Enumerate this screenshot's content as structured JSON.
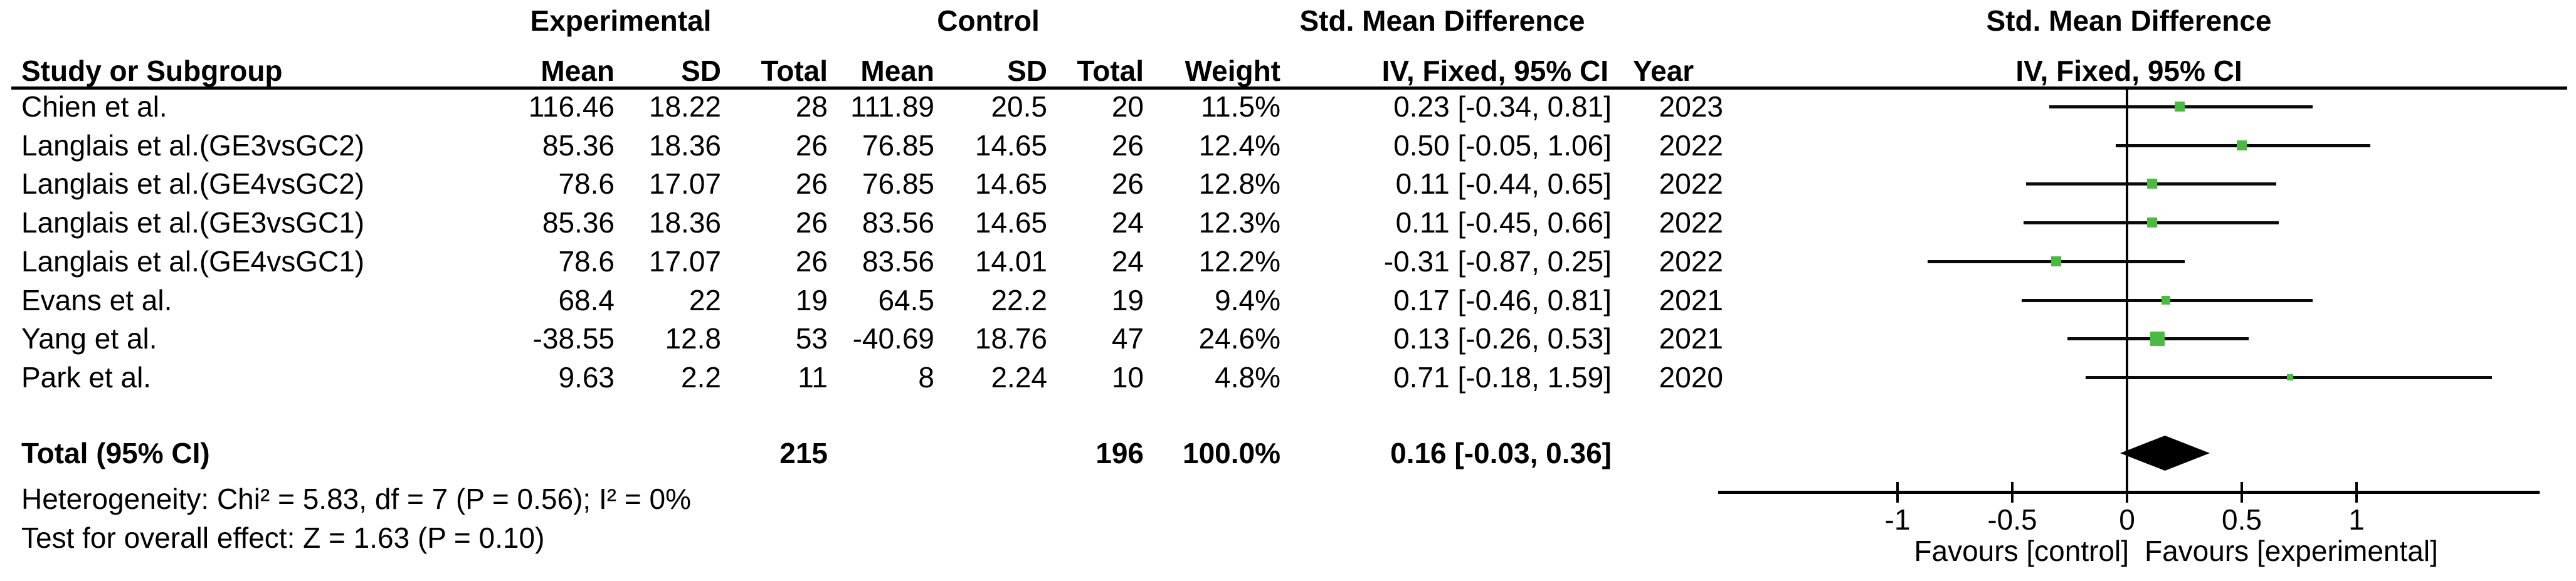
{
  "group_headers": {
    "experimental": "Experimental",
    "control": "Control",
    "smd_table": "Std. Mean Difference",
    "smd_plot": "Std. Mean Difference"
  },
  "column_headers": {
    "study": "Study or Subgroup",
    "exp_mean": "Mean",
    "exp_sd": "SD",
    "exp_total": "Total",
    "ctrl_mean": "Mean",
    "ctrl_sd": "SD",
    "ctrl_total": "Total",
    "weight": "Weight",
    "iv_fixed_table": "IV, Fixed, 95% CI",
    "year": "Year",
    "iv_fixed_plot": "IV, Fixed, 95% CI"
  },
  "studies": [
    {
      "name": "Chien et al.",
      "exp_mean": "116.46",
      "exp_sd": "18.22",
      "exp_total": "28",
      "ctrl_mean": "111.89",
      "ctrl_sd": "20.5",
      "ctrl_total": "20",
      "weight": "11.5%",
      "ci_text": "0.23 [-0.34, 0.81]",
      "year": "2023"
    },
    {
      "name": "Langlais et al.(GE3vsGC2)",
      "exp_mean": "85.36",
      "exp_sd": "18.36",
      "exp_total": "26",
      "ctrl_mean": "76.85",
      "ctrl_sd": "14.65",
      "ctrl_total": "26",
      "weight": "12.4%",
      "ci_text": "0.50 [-0.05, 1.06]",
      "year": "2022"
    },
    {
      "name": "Langlais et al.(GE4vsGC2)",
      "exp_mean": "78.6",
      "exp_sd": "17.07",
      "exp_total": "26",
      "ctrl_mean": "76.85",
      "ctrl_sd": "14.65",
      "ctrl_total": "26",
      "weight": "12.8%",
      "ci_text": "0.11 [-0.44, 0.65]",
      "year": "2022"
    },
    {
      "name": "Langlais et al.(GE3vsGC1)",
      "exp_mean": "85.36",
      "exp_sd": "18.36",
      "exp_total": "26",
      "ctrl_mean": "83.56",
      "ctrl_sd": "14.65",
      "ctrl_total": "24",
      "weight": "12.3%",
      "ci_text": "0.11 [-0.45, 0.66]",
      "year": "2022"
    },
    {
      "name": "Langlais et al.(GE4vsGC1)",
      "exp_mean": "78.6",
      "exp_sd": "17.07",
      "exp_total": "26",
      "ctrl_mean": "83.56",
      "ctrl_sd": "14.01",
      "ctrl_total": "24",
      "weight": "12.2%",
      "ci_text": "-0.31 [-0.87, 0.25]",
      "year": "2022"
    },
    {
      "name": "Evans et al.",
      "exp_mean": "68.4",
      "exp_sd": "22",
      "exp_total": "19",
      "ctrl_mean": "64.5",
      "ctrl_sd": "22.2",
      "ctrl_total": "19",
      "weight": "9.4%",
      "ci_text": "0.17 [-0.46, 0.81]",
      "year": "2021"
    },
    {
      "name": "Yang et al.",
      "exp_mean": "-38.55",
      "exp_sd": "12.8",
      "exp_total": "53",
      "ctrl_mean": "-40.69",
      "ctrl_sd": "18.76",
      "ctrl_total": "47",
      "weight": "24.6%",
      "ci_text": "0.13 [-0.26, 0.53]",
      "year": "2021"
    },
    {
      "name": "Park et al.",
      "exp_mean": "9.63",
      "exp_sd": "2.2",
      "exp_total": "11",
      "ctrl_mean": "8",
      "ctrl_sd": "2.24",
      "ctrl_total": "10",
      "weight": "4.8%",
      "ci_text": "0.71 [-0.18, 1.59]",
      "year": "2020"
    }
  ],
  "total_row": {
    "label": "Total (95% CI)",
    "exp_total": "215",
    "ctrl_total": "196",
    "weight": "100.0%",
    "ci_text": "0.16 [-0.03, 0.36]"
  },
  "footnotes": {
    "heterogeneity": "Heterogeneity: Chi² = 5.83, df = 7 (P = 0.56); I² = 0%",
    "overall_effect": "Test for overall effect: Z = 1.63 (P = 0.10)"
  },
  "plot": {
    "tick_labels": [
      "-1",
      "-0.5",
      "0",
      "0.5",
      "1"
    ],
    "favours_left": "Favours [control]",
    "favours_right": "Favours [experimental]"
  },
  "colors": {
    "marker_green": "#4BB944",
    "diamond_black": "#000000",
    "line_black": "#0a0a0a"
  },
  "chart_data": {
    "type": "scatter",
    "variant": "forest-plot",
    "title": "Std. Mean Difference  IV, Fixed, 95% CI",
    "xlabel": "Favours [control] | Favours [experimental]",
    "x_ticks": [
      -1,
      -0.5,
      0,
      0.5,
      1
    ],
    "x_range": [
      -1.78,
      1.8
    ],
    "legend_position": "none",
    "grid": false,
    "studies": [
      {
        "name": "Chien et al.",
        "smd": 0.23,
        "ci": [
          -0.34,
          0.81
        ],
        "weight_pct": 11.5,
        "year": 2023
      },
      {
        "name": "Langlais et al.(GE3vsGC2)",
        "smd": 0.5,
        "ci": [
          -0.05,
          1.06
        ],
        "weight_pct": 12.4,
        "year": 2022
      },
      {
        "name": "Langlais et al.(GE4vsGC2)",
        "smd": 0.11,
        "ci": [
          -0.44,
          0.65
        ],
        "weight_pct": 12.8,
        "year": 2022
      },
      {
        "name": "Langlais et al.(GE3vsGC1)",
        "smd": 0.11,
        "ci": [
          -0.45,
          0.66
        ],
        "weight_pct": 12.3,
        "year": 2022
      },
      {
        "name": "Langlais et al.(GE4vsGC1)",
        "smd": -0.31,
        "ci": [
          -0.87,
          0.25
        ],
        "weight_pct": 12.2,
        "year": 2022
      },
      {
        "name": "Evans et al.",
        "smd": 0.17,
        "ci": [
          -0.46,
          0.81
        ],
        "weight_pct": 9.4,
        "year": 2021
      },
      {
        "name": "Yang et al.",
        "smd": 0.13,
        "ci": [
          -0.26,
          0.53
        ],
        "weight_pct": 24.6,
        "year": 2021
      },
      {
        "name": "Park et al.",
        "smd": 0.71,
        "ci": [
          -0.18,
          1.59
        ],
        "weight_pct": 4.8,
        "year": 2020
      }
    ],
    "overall": {
      "label": "Total (95% CI)",
      "smd": 0.16,
      "ci": [
        -0.03,
        0.36
      ],
      "weight_pct": 100.0,
      "exp_total": 215,
      "ctrl_total": 196
    },
    "heterogeneity": {
      "chi2": 5.83,
      "df": 7,
      "p": 0.56,
      "i2_pct": 0
    },
    "overall_effect_test": {
      "z": 1.63,
      "p": 0.1
    }
  }
}
